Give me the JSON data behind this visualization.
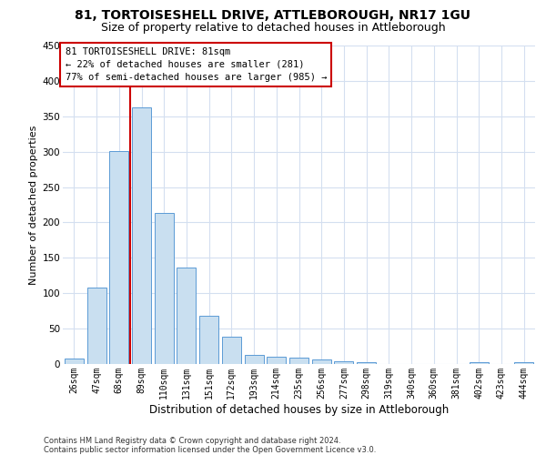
{
  "title_line1": "81, TORTOISESHELL DRIVE, ATTLEBOROUGH, NR17 1GU",
  "title_line2": "Size of property relative to detached houses in Attleborough",
  "xlabel": "Distribution of detached houses by size in Attleborough",
  "ylabel": "Number of detached properties",
  "categories": [
    "26sqm",
    "47sqm",
    "68sqm",
    "89sqm",
    "110sqm",
    "131sqm",
    "151sqm",
    "172sqm",
    "193sqm",
    "214sqm",
    "235sqm",
    "256sqm",
    "277sqm",
    "298sqm",
    "319sqm",
    "340sqm",
    "360sqm",
    "381sqm",
    "402sqm",
    "423sqm",
    "444sqm"
  ],
  "values": [
    8,
    108,
    301,
    362,
    213,
    136,
    68,
    38,
    13,
    10,
    9,
    6,
    4,
    2,
    0,
    0,
    0,
    0,
    2,
    0,
    2
  ],
  "bar_color": "#c9dff0",
  "bar_edge_color": "#5b9bd5",
  "vline_position": 2.5,
  "vline_color": "#cc0000",
  "annotation_line1": "81 TORTOISESHELL DRIVE: 81sqm",
  "annotation_line2": "← 22% of detached houses are smaller (281)",
  "annotation_line3": "77% of semi-detached houses are larger (985) →",
  "annotation_box_facecolor": "#ffffff",
  "annotation_box_edgecolor": "#cc0000",
  "ylim": [
    0,
    450
  ],
  "yticks": [
    0,
    50,
    100,
    150,
    200,
    250,
    300,
    350,
    400,
    450
  ],
  "bg_color": "#ffffff",
  "grid_color": "#d4dff0",
  "footer": "Contains HM Land Registry data © Crown copyright and database right 2024.\nContains public sector information licensed under the Open Government Licence v3.0.",
  "title_fontsize": 10,
  "subtitle_fontsize": 9,
  "ylabel_fontsize": 8,
  "xlabel_fontsize": 8.5,
  "tick_fontsize": 7,
  "annotation_fontsize": 7.5,
  "footer_fontsize": 6
}
